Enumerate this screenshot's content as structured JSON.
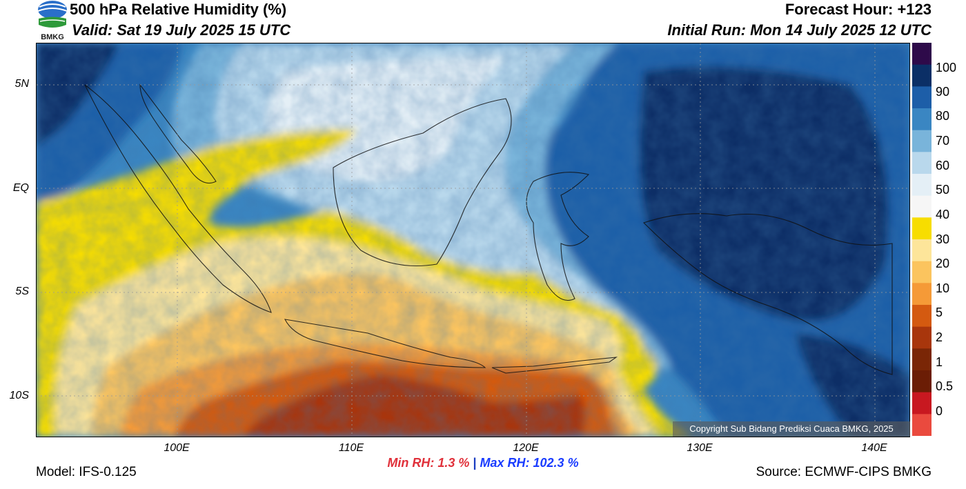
{
  "header": {
    "title": "500 hPa Relative Humidity (%)",
    "valid": "Valid: Sat 19 July 2025 15 UTC",
    "forecast_hour": "Forecast Hour: +123",
    "initial_run": "Initial Run: Mon 14 July 2025 12 UTC",
    "logo_text": "BMKG"
  },
  "axes": {
    "lat_labels": [
      "5N",
      "EQ",
      "5S",
      "10S"
    ],
    "lon_labels": [
      "100E",
      "110E",
      "120E",
      "130E",
      "140E"
    ]
  },
  "colorbar": {
    "labels": [
      "100",
      "90",
      "80",
      "70",
      "60",
      "50",
      "40",
      "30",
      "20",
      "10",
      "5",
      "2",
      "1",
      "0.5",
      "0"
    ],
    "colors": [
      "#2e0a4a",
      "#0b2f66",
      "#1d5ea8",
      "#3a86c2",
      "#79b4da",
      "#b9d8ec",
      "#e4eff6",
      "#f6f6f6",
      "#f7dd00",
      "#fde59a",
      "#fbc45e",
      "#f59a37",
      "#d45a10",
      "#a8360c",
      "#7a2606",
      "#6b1d05",
      "#c81820",
      "#ea4a3e"
    ]
  },
  "stats": {
    "min_rh": "Min RH:   1.3 %",
    "separator": "|",
    "max_rh": "Max RH: 102.3 %"
  },
  "footer": {
    "model": "Model: IFS-0.125",
    "source": "Source: ECMWF-CIPS BMKG",
    "copyright": "Copyright Sub Bidang Prediksi Cuaca BMKG, 2025"
  }
}
